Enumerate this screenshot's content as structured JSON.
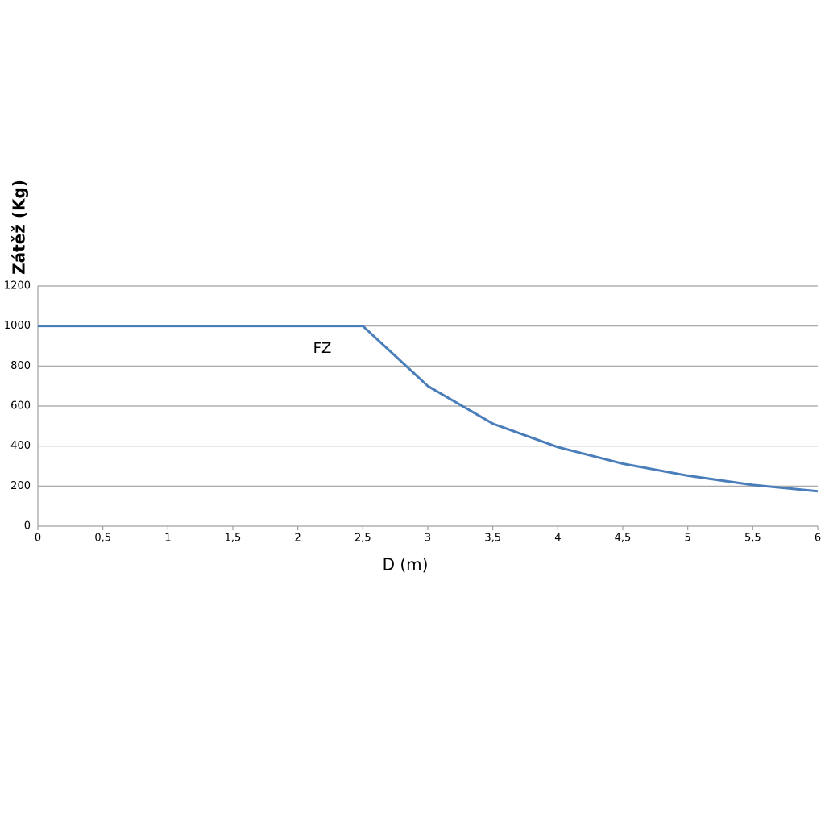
{
  "chart_data": {
    "type": "line",
    "xlabel": "D (m)",
    "ylabel": "Zátěž (Kg)",
    "annotation": "FZ",
    "x": [
      0,
      2.5,
      3,
      3.5,
      4,
      4.5,
      5,
      5.5,
      6
    ],
    "series": [
      {
        "name": "FZ",
        "color": "#4a7ebb",
        "values": [
          1000,
          1000,
          700,
          512,
          395,
          312,
          252,
          206,
          174
        ]
      }
    ],
    "xlim": [
      0,
      6
    ],
    "xticks": [
      0,
      {
        "value": 0.5,
        "label": "0,5"
      },
      1,
      {
        "value": 1.5,
        "label": "1,5"
      },
      2,
      {
        "value": 2.5,
        "label": "2,5"
      },
      3,
      {
        "value": 3.5,
        "label": "3,5"
      },
      4,
      {
        "value": 4.5,
        "label": "4,5"
      },
      5,
      {
        "value": 5.5,
        "label": "5,5"
      },
      6
    ],
    "ylim": [
      0,
      1200
    ],
    "yticks": [
      0,
      200,
      400,
      600,
      800,
      1000,
      1200
    ],
    "grid": true
  }
}
